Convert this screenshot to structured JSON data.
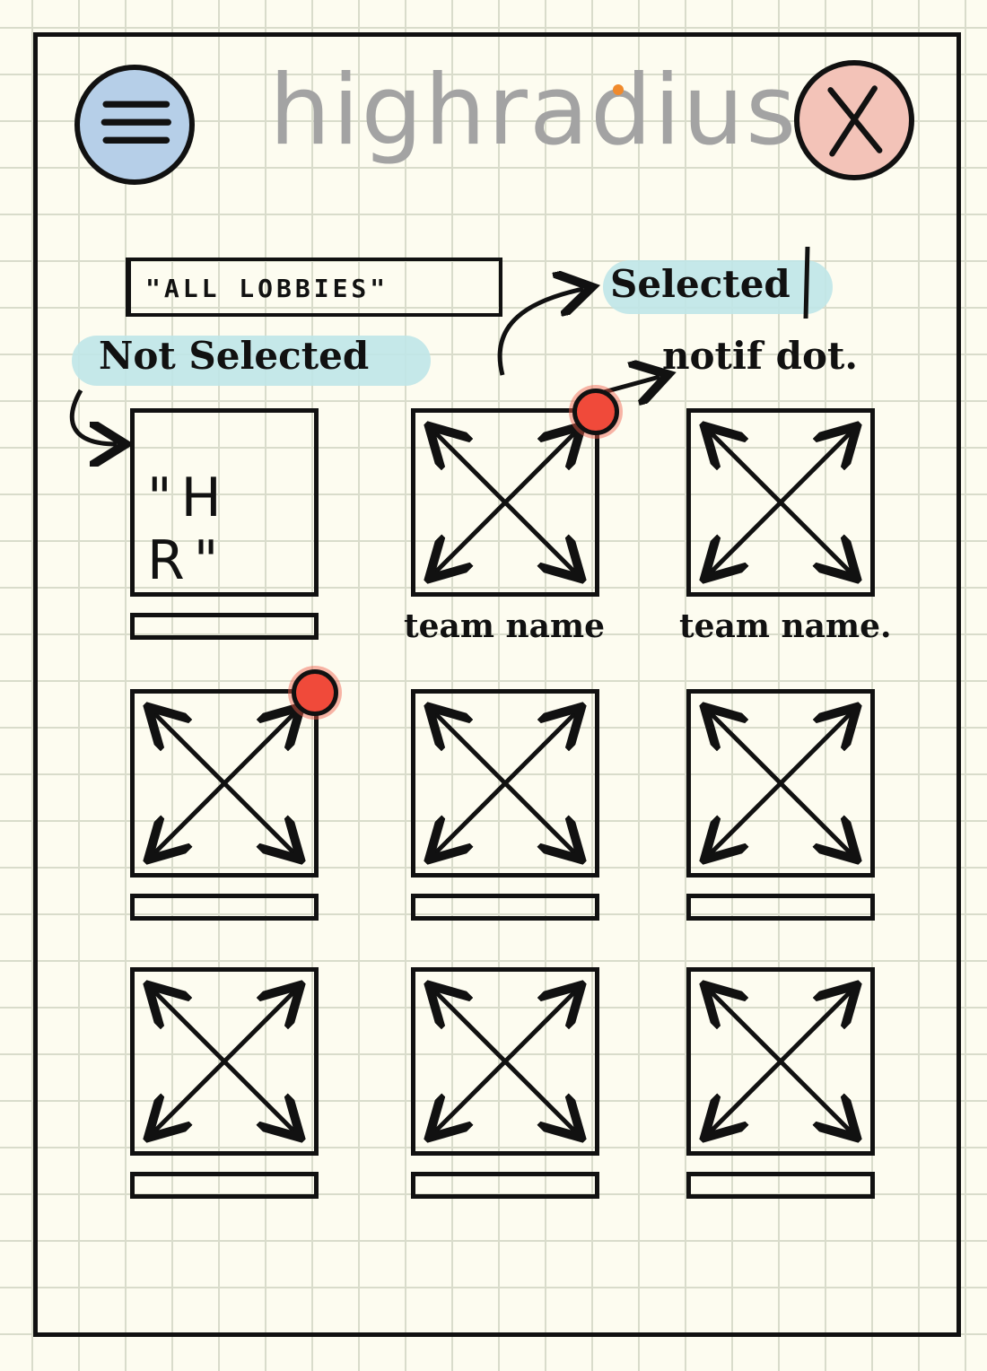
{
  "header": {
    "menu_icon": "hamburger-menu-icon",
    "logo_text": "highradius",
    "close_icon": "close-x-icon",
    "colors": {
      "menu_bg": "#b6cfe8",
      "close_bg": "#f3c3b8",
      "logo_text": "#a3a3a3",
      "logo_dot": "#f08a2c"
    }
  },
  "search": {
    "text": "\"ALL LOBBIES\""
  },
  "annotations": {
    "selected": "Selected",
    "not_selected": "Not Selected",
    "notif_dot": "notif dot.",
    "highlight_color": "#bfe6e8"
  },
  "grid": {
    "tiles": [
      {
        "text": "\"H R\"",
        "label": "",
        "notification": false,
        "selected": false
      },
      {
        "text": "",
        "label": "team name",
        "notification": true,
        "selected": true
      },
      {
        "text": "",
        "label": "team name.",
        "notification": false,
        "selected": false
      },
      {
        "text": "",
        "label": "",
        "notification": true,
        "selected": false
      },
      {
        "text": "",
        "label": "",
        "notification": false,
        "selected": false
      },
      {
        "text": "",
        "label": "",
        "notification": false,
        "selected": false
      },
      {
        "text": "",
        "label": "",
        "notification": false,
        "selected": false
      },
      {
        "text": "",
        "label": "",
        "notification": false,
        "selected": false
      },
      {
        "text": "",
        "label": "",
        "notification": false,
        "selected": false
      }
    ],
    "placeholder_icon": "image-placeholder-icon",
    "notif_color": "#f04a3a"
  }
}
